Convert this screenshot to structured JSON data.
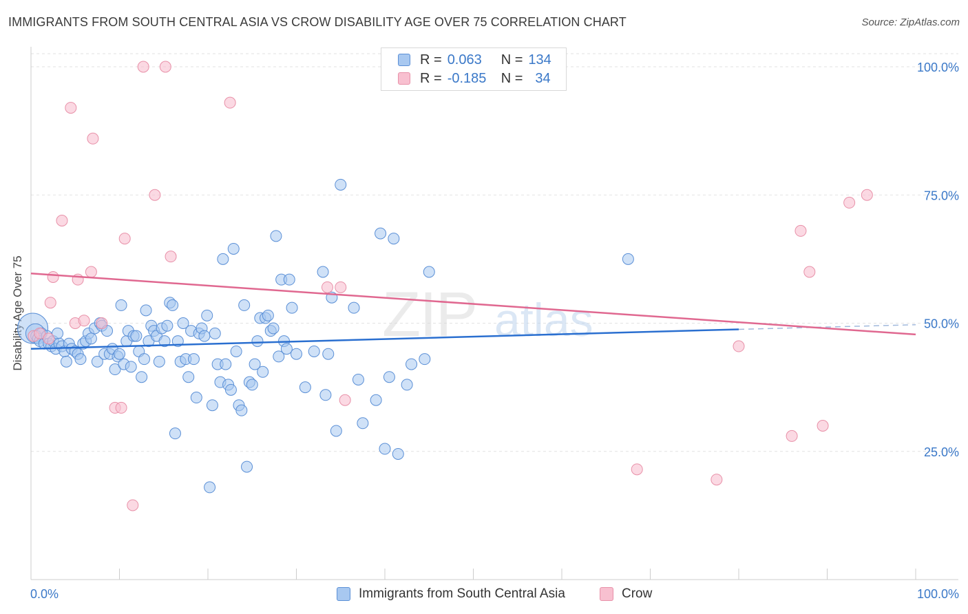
{
  "title": "IMMIGRANTS FROM SOUTH CENTRAL ASIA VS CROW DISABILITY AGE OVER 75 CORRELATION CHART",
  "source": "Source: ZipAtlas.com",
  "watermark": {
    "zip": "ZIP",
    "atlas": "atlas"
  },
  "legend": {
    "rows": [
      {
        "r_label": "R =",
        "r_value": "0.063",
        "n_label": "N =",
        "n_value": "134"
      },
      {
        "r_label": "R =",
        "r_value": "-0.185",
        "n_label": "N =",
        "n_value": "34"
      }
    ]
  },
  "bottom_legend": {
    "series1": "Immigrants from South Central Asia",
    "series2": "Crow"
  },
  "colors": {
    "blue_fill": "#a8c8f0",
    "blue_stroke": "#5a8fd6",
    "blue_line": "#2a6fd0",
    "pink_fill": "#f8c0d0",
    "pink_stroke": "#e890a8",
    "pink_line": "#e06890",
    "tick_text": "#3a78c8"
  },
  "chart_data": {
    "type": "scatter",
    "title": "IMMIGRANTS FROM SOUTH CENTRAL ASIA VS CROW DISABILITY AGE OVER 75 CORRELATION CHART",
    "xlabel": "",
    "ylabel": "Disability Age Over 75",
    "xlim": [
      0,
      100
    ],
    "ylim": [
      0,
      102
    ],
    "x_tick_labels": [
      "0.0%",
      "100.0%"
    ],
    "y_tick_labels": [
      "25.0%",
      "50.0%",
      "75.0%",
      "100.0%"
    ],
    "y_ticks": [
      25,
      50,
      75,
      100
    ],
    "grid": true,
    "legend_position": "top-center",
    "series": [
      {
        "name": "Immigrants from South Central Asia",
        "R": 0.063,
        "N": 134,
        "trend": {
          "x0": 0,
          "y0": 45.0,
          "x1": 80,
          "y1": 48.8,
          "dashed_to_x": 100,
          "dashed_to_y": 49.7
        },
        "points": [
          [
            0.2,
            49.0,
            3
          ],
          [
            0.5,
            48.0,
            2
          ],
          [
            0.6,
            47.5,
            1
          ],
          [
            0.8,
            47.0,
            1
          ],
          [
            1.0,
            46.5,
            1
          ],
          [
            1.2,
            48.0,
            1
          ],
          [
            1.5,
            46.0,
            1
          ],
          [
            1.8,
            47.5,
            1
          ],
          [
            2.0,
            46.0,
            1
          ],
          [
            2.3,
            45.5,
            1
          ],
          [
            2.5,
            46.5,
            1
          ],
          [
            2.8,
            45.0,
            1
          ],
          [
            3.0,
            48.0,
            1
          ],
          [
            3.2,
            46.0,
            1
          ],
          [
            3.5,
            45.5,
            1
          ],
          [
            3.8,
            44.5,
            1
          ],
          [
            4.0,
            42.5,
            1
          ],
          [
            4.3,
            46.0,
            1
          ],
          [
            4.6,
            45.0,
            1
          ],
          [
            5.0,
            44.5,
            1
          ],
          [
            5.3,
            44.0,
            1
          ],
          [
            5.6,
            43.0,
            1
          ],
          [
            5.9,
            46.0,
            1
          ],
          [
            6.2,
            46.5,
            1
          ],
          [
            6.5,
            48.0,
            1
          ],
          [
            6.8,
            47.0,
            1
          ],
          [
            7.2,
            49.0,
            1
          ],
          [
            7.5,
            42.5,
            1
          ],
          [
            7.8,
            50.0,
            1
          ],
          [
            8.0,
            49.5,
            1
          ],
          [
            8.3,
            44.0,
            1
          ],
          [
            8.6,
            48.5,
            1
          ],
          [
            8.9,
            44.0,
            1
          ],
          [
            9.2,
            45.0,
            1
          ],
          [
            9.5,
            41.0,
            1
          ],
          [
            9.8,
            43.5,
            1
          ],
          [
            10.0,
            44.0,
            1
          ],
          [
            10.2,
            53.5,
            1
          ],
          [
            10.5,
            42.0,
            1
          ],
          [
            10.8,
            46.5,
            1
          ],
          [
            11.0,
            48.5,
            1
          ],
          [
            11.3,
            41.5,
            1
          ],
          [
            11.6,
            47.5,
            1
          ],
          [
            11.9,
            47.5,
            1
          ],
          [
            12.2,
            44.5,
            1
          ],
          [
            12.5,
            39.5,
            1
          ],
          [
            12.8,
            43.0,
            1
          ],
          [
            13.0,
            52.5,
            1
          ],
          [
            13.3,
            46.5,
            1
          ],
          [
            13.6,
            49.5,
            1
          ],
          [
            13.9,
            48.5,
            1
          ],
          [
            14.2,
            47.5,
            1
          ],
          [
            14.5,
            42.5,
            1
          ],
          [
            14.8,
            49.0,
            1
          ],
          [
            15.1,
            46.5,
            1
          ],
          [
            15.4,
            49.5,
            1
          ],
          [
            15.7,
            54.0,
            1
          ],
          [
            16.0,
            53.5,
            1
          ],
          [
            16.3,
            28.5,
            1
          ],
          [
            16.6,
            46.5,
            1
          ],
          [
            16.9,
            42.5,
            1
          ],
          [
            17.2,
            50.0,
            1
          ],
          [
            17.5,
            43.0,
            1
          ],
          [
            17.8,
            39.5,
            1
          ],
          [
            18.1,
            48.5,
            1
          ],
          [
            18.4,
            43.0,
            1
          ],
          [
            18.7,
            35.5,
            1
          ],
          [
            19.0,
            48.0,
            1
          ],
          [
            19.3,
            49.0,
            1
          ],
          [
            19.6,
            47.5,
            1
          ],
          [
            19.9,
            51.5,
            1
          ],
          [
            20.2,
            18.0,
            1
          ],
          [
            20.5,
            34.0,
            1
          ],
          [
            20.8,
            48.0,
            1
          ],
          [
            21.1,
            42.0,
            1
          ],
          [
            21.4,
            38.5,
            1
          ],
          [
            21.7,
            62.5,
            1
          ],
          [
            22.0,
            42.0,
            1
          ],
          [
            22.3,
            38.0,
            1
          ],
          [
            22.6,
            37.0,
            1
          ],
          [
            22.9,
            64.5,
            1
          ],
          [
            23.2,
            44.5,
            1
          ],
          [
            23.5,
            34.0,
            1
          ],
          [
            23.8,
            33.0,
            1
          ],
          [
            24.1,
            53.5,
            1
          ],
          [
            24.4,
            22.0,
            1
          ],
          [
            24.7,
            38.5,
            1
          ],
          [
            25.0,
            38.0,
            1
          ],
          [
            25.3,
            42.0,
            1
          ],
          [
            25.6,
            46.5,
            1
          ],
          [
            25.9,
            51.0,
            1
          ],
          [
            26.2,
            40.5,
            1
          ],
          [
            26.5,
            51.0,
            1
          ],
          [
            26.8,
            51.5,
            1
          ],
          [
            27.1,
            48.5,
            1
          ],
          [
            27.4,
            49.0,
            1
          ],
          [
            27.7,
            67.0,
            1
          ],
          [
            28.0,
            43.5,
            1
          ],
          [
            28.3,
            58.5,
            1
          ],
          [
            28.6,
            46.5,
            1
          ],
          [
            28.9,
            45.0,
            1
          ],
          [
            29.2,
            58.5,
            1
          ],
          [
            29.5,
            53.0,
            1
          ],
          [
            30.0,
            44.0,
            1
          ],
          [
            31.0,
            37.5,
            1
          ],
          [
            32.0,
            44.5,
            1
          ],
          [
            33.0,
            60.0,
            1
          ],
          [
            33.3,
            36.0,
            1
          ],
          [
            33.6,
            44.0,
            1
          ],
          [
            34.0,
            55.0,
            1
          ],
          [
            34.5,
            29.0,
            1
          ],
          [
            35.0,
            77.0,
            1
          ],
          [
            36.5,
            53.0,
            1
          ],
          [
            37.0,
            39.0,
            1
          ],
          [
            37.5,
            30.5,
            1
          ],
          [
            39.0,
            35.0,
            1
          ],
          [
            39.5,
            67.5,
            1
          ],
          [
            40.0,
            25.5,
            1
          ],
          [
            40.5,
            39.5,
            1
          ],
          [
            41.0,
            66.5,
            1
          ],
          [
            41.5,
            24.5,
            1
          ],
          [
            42.5,
            38.0,
            1
          ],
          [
            43.0,
            42.0,
            1
          ],
          [
            44.5,
            43.0,
            1
          ],
          [
            45.0,
            60.0,
            1
          ],
          [
            67.5,
            62.5,
            1
          ]
        ]
      },
      {
        "name": "Crow",
        "R": -0.185,
        "N": 34,
        "trend": {
          "x0": 0,
          "y0": 59.7,
          "x1": 100,
          "y1": 47.8
        },
        "points": [
          [
            0.3,
            47.5,
            1
          ],
          [
            1.0,
            48.0,
            1
          ],
          [
            2.0,
            47.0,
            1
          ],
          [
            2.2,
            54.0,
            1
          ],
          [
            2.5,
            59.0,
            1
          ],
          [
            3.5,
            70.0,
            1
          ],
          [
            4.5,
            92.0,
            1
          ],
          [
            5.0,
            50.0,
            1
          ],
          [
            5.3,
            58.5,
            1
          ],
          [
            6.0,
            50.5,
            1
          ],
          [
            6.8,
            60.0,
            1
          ],
          [
            7.0,
            86.0,
            1
          ],
          [
            8.0,
            50.0,
            1
          ],
          [
            9.5,
            33.5,
            1
          ],
          [
            10.2,
            33.5,
            1
          ],
          [
            10.6,
            66.5,
            1
          ],
          [
            11.5,
            14.5,
            1
          ],
          [
            12.7,
            100.0,
            1
          ],
          [
            14.0,
            75.0,
            1
          ],
          [
            15.2,
            100.0,
            1
          ],
          [
            15.8,
            63.0,
            1
          ],
          [
            22.5,
            93.0,
            1
          ],
          [
            33.5,
            57.0,
            1
          ],
          [
            35.0,
            57.0,
            1
          ],
          [
            35.5,
            35.0,
            1
          ],
          [
            68.5,
            21.5,
            1
          ],
          [
            77.5,
            19.5,
            1
          ],
          [
            80.0,
            45.5,
            1
          ],
          [
            86.0,
            28.0,
            1
          ],
          [
            87.0,
            68.0,
            1
          ],
          [
            88.0,
            60.0,
            1
          ],
          [
            89.5,
            30.0,
            1
          ],
          [
            92.5,
            73.5,
            1
          ],
          [
            94.5,
            75.0,
            1
          ]
        ]
      }
    ]
  }
}
